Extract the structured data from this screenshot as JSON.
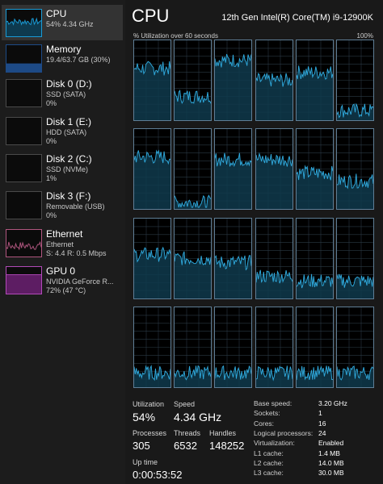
{
  "sidebar": {
    "items": [
      {
        "name": "CPU",
        "line1": "54% 4.34 GHz",
        "line2": "",
        "selected": true,
        "color": "#1a9bd6",
        "fill": "#0e3a4f"
      },
      {
        "name": "Memory",
        "line1": "19.4/63.7 GB (30%)",
        "line2": "",
        "selected": false,
        "color": "#1d4a86",
        "fill": "#1d4a86"
      },
      {
        "name": "Disk 0 (D:)",
        "line1": "SSD (SATA)",
        "line2": "0%",
        "selected": false,
        "color": "#4a4a4a",
        "fill": "#0b0b0b"
      },
      {
        "name": "Disk 1 (E:)",
        "line1": "HDD (SATA)",
        "line2": "0%",
        "selected": false,
        "color": "#4a4a4a",
        "fill": "#0b0b0b"
      },
      {
        "name": "Disk 2 (C:)",
        "line1": "SSD (NVMe)",
        "line2": "1%",
        "selected": false,
        "color": "#4a4a4a",
        "fill": "#0b0b0b"
      },
      {
        "name": "Disk 3 (F:)",
        "line1": "Removable (USB)",
        "line2": "0%",
        "selected": false,
        "color": "#4a4a4a",
        "fill": "#0b0b0b"
      },
      {
        "name": "Ethernet",
        "line1": "Ethernet",
        "line2": "S: 4.4  R: 0.5 Mbps",
        "selected": false,
        "color": "#b0567f",
        "fill": "#0b0b0b"
      },
      {
        "name": "GPU 0",
        "line1": "NVIDIA GeForce R...",
        "line2": "72% (47 °C)",
        "selected": false,
        "color": "#b24ab8",
        "fill": "#5d1d63"
      }
    ]
  },
  "header": {
    "title": "CPU",
    "model": "12th Gen Intel(R) Core(TM) i9-12900K",
    "util_caption": "% Utilization over 60 seconds",
    "util_max": "100%"
  },
  "graph": {
    "line_color": "#2fa8db",
    "fill_color": "#0f3a4c",
    "grid_color": "#2b3a45",
    "cores_utilization": [
      65,
      30,
      75,
      50,
      60,
      12,
      65,
      8,
      62,
      62,
      45,
      35,
      55,
      50,
      45,
      28,
      22,
      22,
      18,
      18,
      18,
      18,
      18,
      18
    ]
  },
  "stats": {
    "utilization_label": "Utilization",
    "utilization_value": "54%",
    "speed_label": "Speed",
    "speed_value": "4.34 GHz",
    "processes_label": "Processes",
    "processes_value": "305",
    "threads_label": "Threads",
    "threads_value": "6532",
    "handles_label": "Handles",
    "handles_value": "148252",
    "uptime_label": "Up time",
    "uptime_value": "0:00:53:52"
  },
  "specs": [
    {
      "label": "Base speed:",
      "value": "3.20 GHz"
    },
    {
      "label": "Sockets:",
      "value": "1"
    },
    {
      "label": "Cores:",
      "value": "16"
    },
    {
      "label": "Logical processors:",
      "value": "24"
    },
    {
      "label": "Virtualization:",
      "value": "Enabled"
    },
    {
      "label": "L1 cache:",
      "value": "1.4 MB"
    },
    {
      "label": "L2 cache:",
      "value": "14.0 MB"
    },
    {
      "label": "L3 cache:",
      "value": "30.0 MB"
    }
  ]
}
